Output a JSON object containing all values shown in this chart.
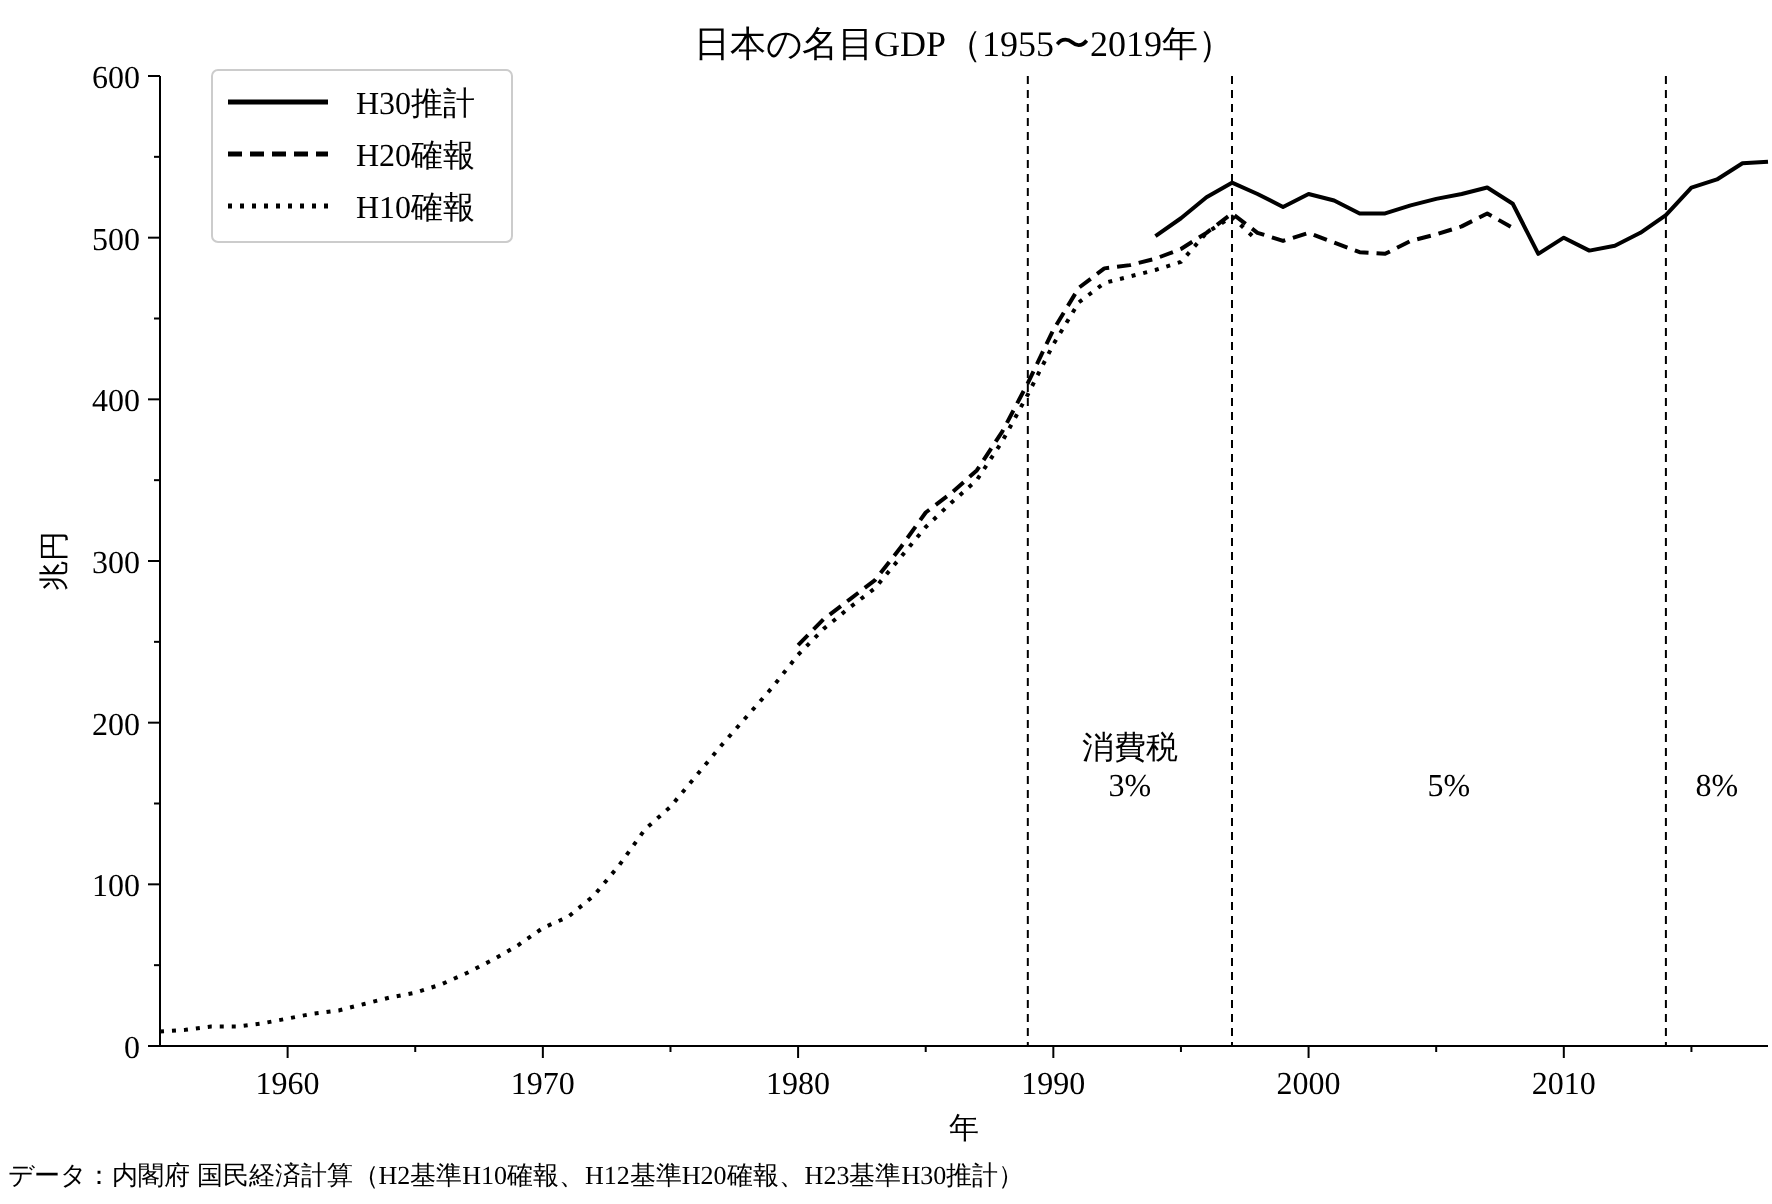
{
  "chart_data": {
    "type": "line",
    "title": "日本の名目GDP（1955〜2019年）",
    "xlabel": "年",
    "ylabel": "兆円",
    "xlim": [
      1955,
      2018
    ],
    "xticks": [
      1960,
      1970,
      1980,
      1990,
      2000,
      2010
    ],
    "ylim": [
      0,
      600
    ],
    "yticks": [
      0,
      100,
      200,
      300,
      400,
      500,
      600
    ],
    "legend": "top left",
    "grid": false,
    "marker": "none",
    "series": [
      {
        "name": "H30推計",
        "color": "#000000",
        "line_style": "solid",
        "x": [
          1994,
          1995,
          1996,
          1997,
          1998,
          1999,
          2000,
          2001,
          2002,
          2003,
          2004,
          2005,
          2006,
          2007,
          2008,
          2009,
          2010,
          2011,
          2012,
          2013,
          2014,
          2015,
          2016,
          2017,
          2018
        ],
        "values": [
          501,
          512,
          525,
          534,
          527,
          519,
          527,
          523,
          515,
          515,
          520,
          524,
          527,
          531,
          521,
          490,
          500,
          492,
          495,
          503,
          514,
          531,
          536,
          546,
          547
        ]
      },
      {
        "name": "H20確報",
        "color": "#000000",
        "line_style": "dashed",
        "x": [
          1980,
          1981,
          1982,
          1983,
          1984,
          1985,
          1986,
          1987,
          1988,
          1989,
          1990,
          1991,
          1992,
          1993,
          1994,
          1995,
          1996,
          1997,
          1998,
          1999,
          2000,
          2001,
          2002,
          2003,
          2004,
          2005,
          2006,
          2007,
          2008
        ],
        "values": [
          248,
          264,
          276,
          288,
          308,
          330,
          342,
          356,
          380,
          410,
          443,
          469,
          481,
          483,
          487,
          493,
          503,
          515,
          503,
          498,
          503,
          497,
          491,
          490,
          498,
          502,
          507,
          515,
          506
        ]
      },
      {
        "name": "H10確報",
        "color": "#000000",
        "line_style": "dotted",
        "x": [
          1955,
          1956,
          1957,
          1958,
          1959,
          1960,
          1961,
          1962,
          1963,
          1964,
          1965,
          1966,
          1967,
          1968,
          1969,
          1970,
          1971,
          1972,
          1973,
          1974,
          1975,
          1976,
          1977,
          1978,
          1979,
          1980,
          1981,
          1982,
          1983,
          1984,
          1985,
          1986,
          1987,
          1988,
          1989,
          1990,
          1991,
          1992,
          1993,
          1994,
          1995,
          1996,
          1997,
          1998
        ],
        "values": [
          9,
          10,
          12,
          12,
          14,
          17,
          20,
          22,
          26,
          30,
          33,
          38,
          45,
          53,
          62,
          73,
          80,
          93,
          112,
          134,
          148,
          167,
          186,
          204,
          222,
          242,
          258,
          271,
          283,
          302,
          321,
          336,
          350,
          374,
          403,
          434,
          460,
          472,
          476,
          480,
          485,
          503,
          513,
          498
        ]
      }
    ],
    "ref_lines": [
      {
        "axis": "x",
        "value": 1989,
        "color": "#000000",
        "line_style": "dashed"
      },
      {
        "axis": "x",
        "value": 1997,
        "color": "#000000",
        "line_style": "dashed"
      },
      {
        "axis": "x",
        "value": 2014,
        "color": "#000000",
        "line_style": "dashed"
      }
    ],
    "annotations": [
      "消費税\n3%",
      "5%",
      "8%",
      "データ：内閣府 国民経済計算（H2基準H10確報、H12基準H20確報、H23基準H30推計）"
    ]
  }
}
